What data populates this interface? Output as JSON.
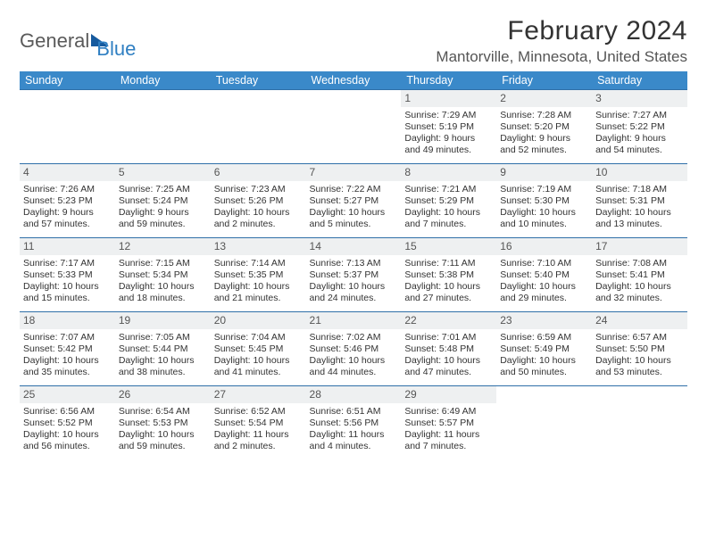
{
  "logo": {
    "part1": "General",
    "part2": "Blue"
  },
  "title": "February 2024",
  "location": "Mantorville, Minnesota, United States",
  "colors": {
    "header_bg": "#3a89c9",
    "header_text": "#ffffff",
    "daynum_bg": "#eef0f1",
    "row_border": "#2f6fa8",
    "title_color": "#333333",
    "location_color": "#555555",
    "logo_gray": "#5a5a5a",
    "logo_blue": "#2f7fc2"
  },
  "weekdays": [
    "Sunday",
    "Monday",
    "Tuesday",
    "Wednesday",
    "Thursday",
    "Friday",
    "Saturday"
  ],
  "weeks": [
    [
      null,
      null,
      null,
      null,
      {
        "n": "1",
        "sr": "Sunrise: 7:29 AM",
        "ss": "Sunset: 5:19 PM",
        "d1": "Daylight: 9 hours",
        "d2": "and 49 minutes."
      },
      {
        "n": "2",
        "sr": "Sunrise: 7:28 AM",
        "ss": "Sunset: 5:20 PM",
        "d1": "Daylight: 9 hours",
        "d2": "and 52 minutes."
      },
      {
        "n": "3",
        "sr": "Sunrise: 7:27 AM",
        "ss": "Sunset: 5:22 PM",
        "d1": "Daylight: 9 hours",
        "d2": "and 54 minutes."
      }
    ],
    [
      {
        "n": "4",
        "sr": "Sunrise: 7:26 AM",
        "ss": "Sunset: 5:23 PM",
        "d1": "Daylight: 9 hours",
        "d2": "and 57 minutes."
      },
      {
        "n": "5",
        "sr": "Sunrise: 7:25 AM",
        "ss": "Sunset: 5:24 PM",
        "d1": "Daylight: 9 hours",
        "d2": "and 59 minutes."
      },
      {
        "n": "6",
        "sr": "Sunrise: 7:23 AM",
        "ss": "Sunset: 5:26 PM",
        "d1": "Daylight: 10 hours",
        "d2": "and 2 minutes."
      },
      {
        "n": "7",
        "sr": "Sunrise: 7:22 AM",
        "ss": "Sunset: 5:27 PM",
        "d1": "Daylight: 10 hours",
        "d2": "and 5 minutes."
      },
      {
        "n": "8",
        "sr": "Sunrise: 7:21 AM",
        "ss": "Sunset: 5:29 PM",
        "d1": "Daylight: 10 hours",
        "d2": "and 7 minutes."
      },
      {
        "n": "9",
        "sr": "Sunrise: 7:19 AM",
        "ss": "Sunset: 5:30 PM",
        "d1": "Daylight: 10 hours",
        "d2": "and 10 minutes."
      },
      {
        "n": "10",
        "sr": "Sunrise: 7:18 AM",
        "ss": "Sunset: 5:31 PM",
        "d1": "Daylight: 10 hours",
        "d2": "and 13 minutes."
      }
    ],
    [
      {
        "n": "11",
        "sr": "Sunrise: 7:17 AM",
        "ss": "Sunset: 5:33 PM",
        "d1": "Daylight: 10 hours",
        "d2": "and 15 minutes."
      },
      {
        "n": "12",
        "sr": "Sunrise: 7:15 AM",
        "ss": "Sunset: 5:34 PM",
        "d1": "Daylight: 10 hours",
        "d2": "and 18 minutes."
      },
      {
        "n": "13",
        "sr": "Sunrise: 7:14 AM",
        "ss": "Sunset: 5:35 PM",
        "d1": "Daylight: 10 hours",
        "d2": "and 21 minutes."
      },
      {
        "n": "14",
        "sr": "Sunrise: 7:13 AM",
        "ss": "Sunset: 5:37 PM",
        "d1": "Daylight: 10 hours",
        "d2": "and 24 minutes."
      },
      {
        "n": "15",
        "sr": "Sunrise: 7:11 AM",
        "ss": "Sunset: 5:38 PM",
        "d1": "Daylight: 10 hours",
        "d2": "and 27 minutes."
      },
      {
        "n": "16",
        "sr": "Sunrise: 7:10 AM",
        "ss": "Sunset: 5:40 PM",
        "d1": "Daylight: 10 hours",
        "d2": "and 29 minutes."
      },
      {
        "n": "17",
        "sr": "Sunrise: 7:08 AM",
        "ss": "Sunset: 5:41 PM",
        "d1": "Daylight: 10 hours",
        "d2": "and 32 minutes."
      }
    ],
    [
      {
        "n": "18",
        "sr": "Sunrise: 7:07 AM",
        "ss": "Sunset: 5:42 PM",
        "d1": "Daylight: 10 hours",
        "d2": "and 35 minutes."
      },
      {
        "n": "19",
        "sr": "Sunrise: 7:05 AM",
        "ss": "Sunset: 5:44 PM",
        "d1": "Daylight: 10 hours",
        "d2": "and 38 minutes."
      },
      {
        "n": "20",
        "sr": "Sunrise: 7:04 AM",
        "ss": "Sunset: 5:45 PM",
        "d1": "Daylight: 10 hours",
        "d2": "and 41 minutes."
      },
      {
        "n": "21",
        "sr": "Sunrise: 7:02 AM",
        "ss": "Sunset: 5:46 PM",
        "d1": "Daylight: 10 hours",
        "d2": "and 44 minutes."
      },
      {
        "n": "22",
        "sr": "Sunrise: 7:01 AM",
        "ss": "Sunset: 5:48 PM",
        "d1": "Daylight: 10 hours",
        "d2": "and 47 minutes."
      },
      {
        "n": "23",
        "sr": "Sunrise: 6:59 AM",
        "ss": "Sunset: 5:49 PM",
        "d1": "Daylight: 10 hours",
        "d2": "and 50 minutes."
      },
      {
        "n": "24",
        "sr": "Sunrise: 6:57 AM",
        "ss": "Sunset: 5:50 PM",
        "d1": "Daylight: 10 hours",
        "d2": "and 53 minutes."
      }
    ],
    [
      {
        "n": "25",
        "sr": "Sunrise: 6:56 AM",
        "ss": "Sunset: 5:52 PM",
        "d1": "Daylight: 10 hours",
        "d2": "and 56 minutes."
      },
      {
        "n": "26",
        "sr": "Sunrise: 6:54 AM",
        "ss": "Sunset: 5:53 PM",
        "d1": "Daylight: 10 hours",
        "d2": "and 59 minutes."
      },
      {
        "n": "27",
        "sr": "Sunrise: 6:52 AM",
        "ss": "Sunset: 5:54 PM",
        "d1": "Daylight: 11 hours",
        "d2": "and 2 minutes."
      },
      {
        "n": "28",
        "sr": "Sunrise: 6:51 AM",
        "ss": "Sunset: 5:56 PM",
        "d1": "Daylight: 11 hours",
        "d2": "and 4 minutes."
      },
      {
        "n": "29",
        "sr": "Sunrise: 6:49 AM",
        "ss": "Sunset: 5:57 PM",
        "d1": "Daylight: 11 hours",
        "d2": "and 7 minutes."
      },
      null,
      null
    ]
  ]
}
